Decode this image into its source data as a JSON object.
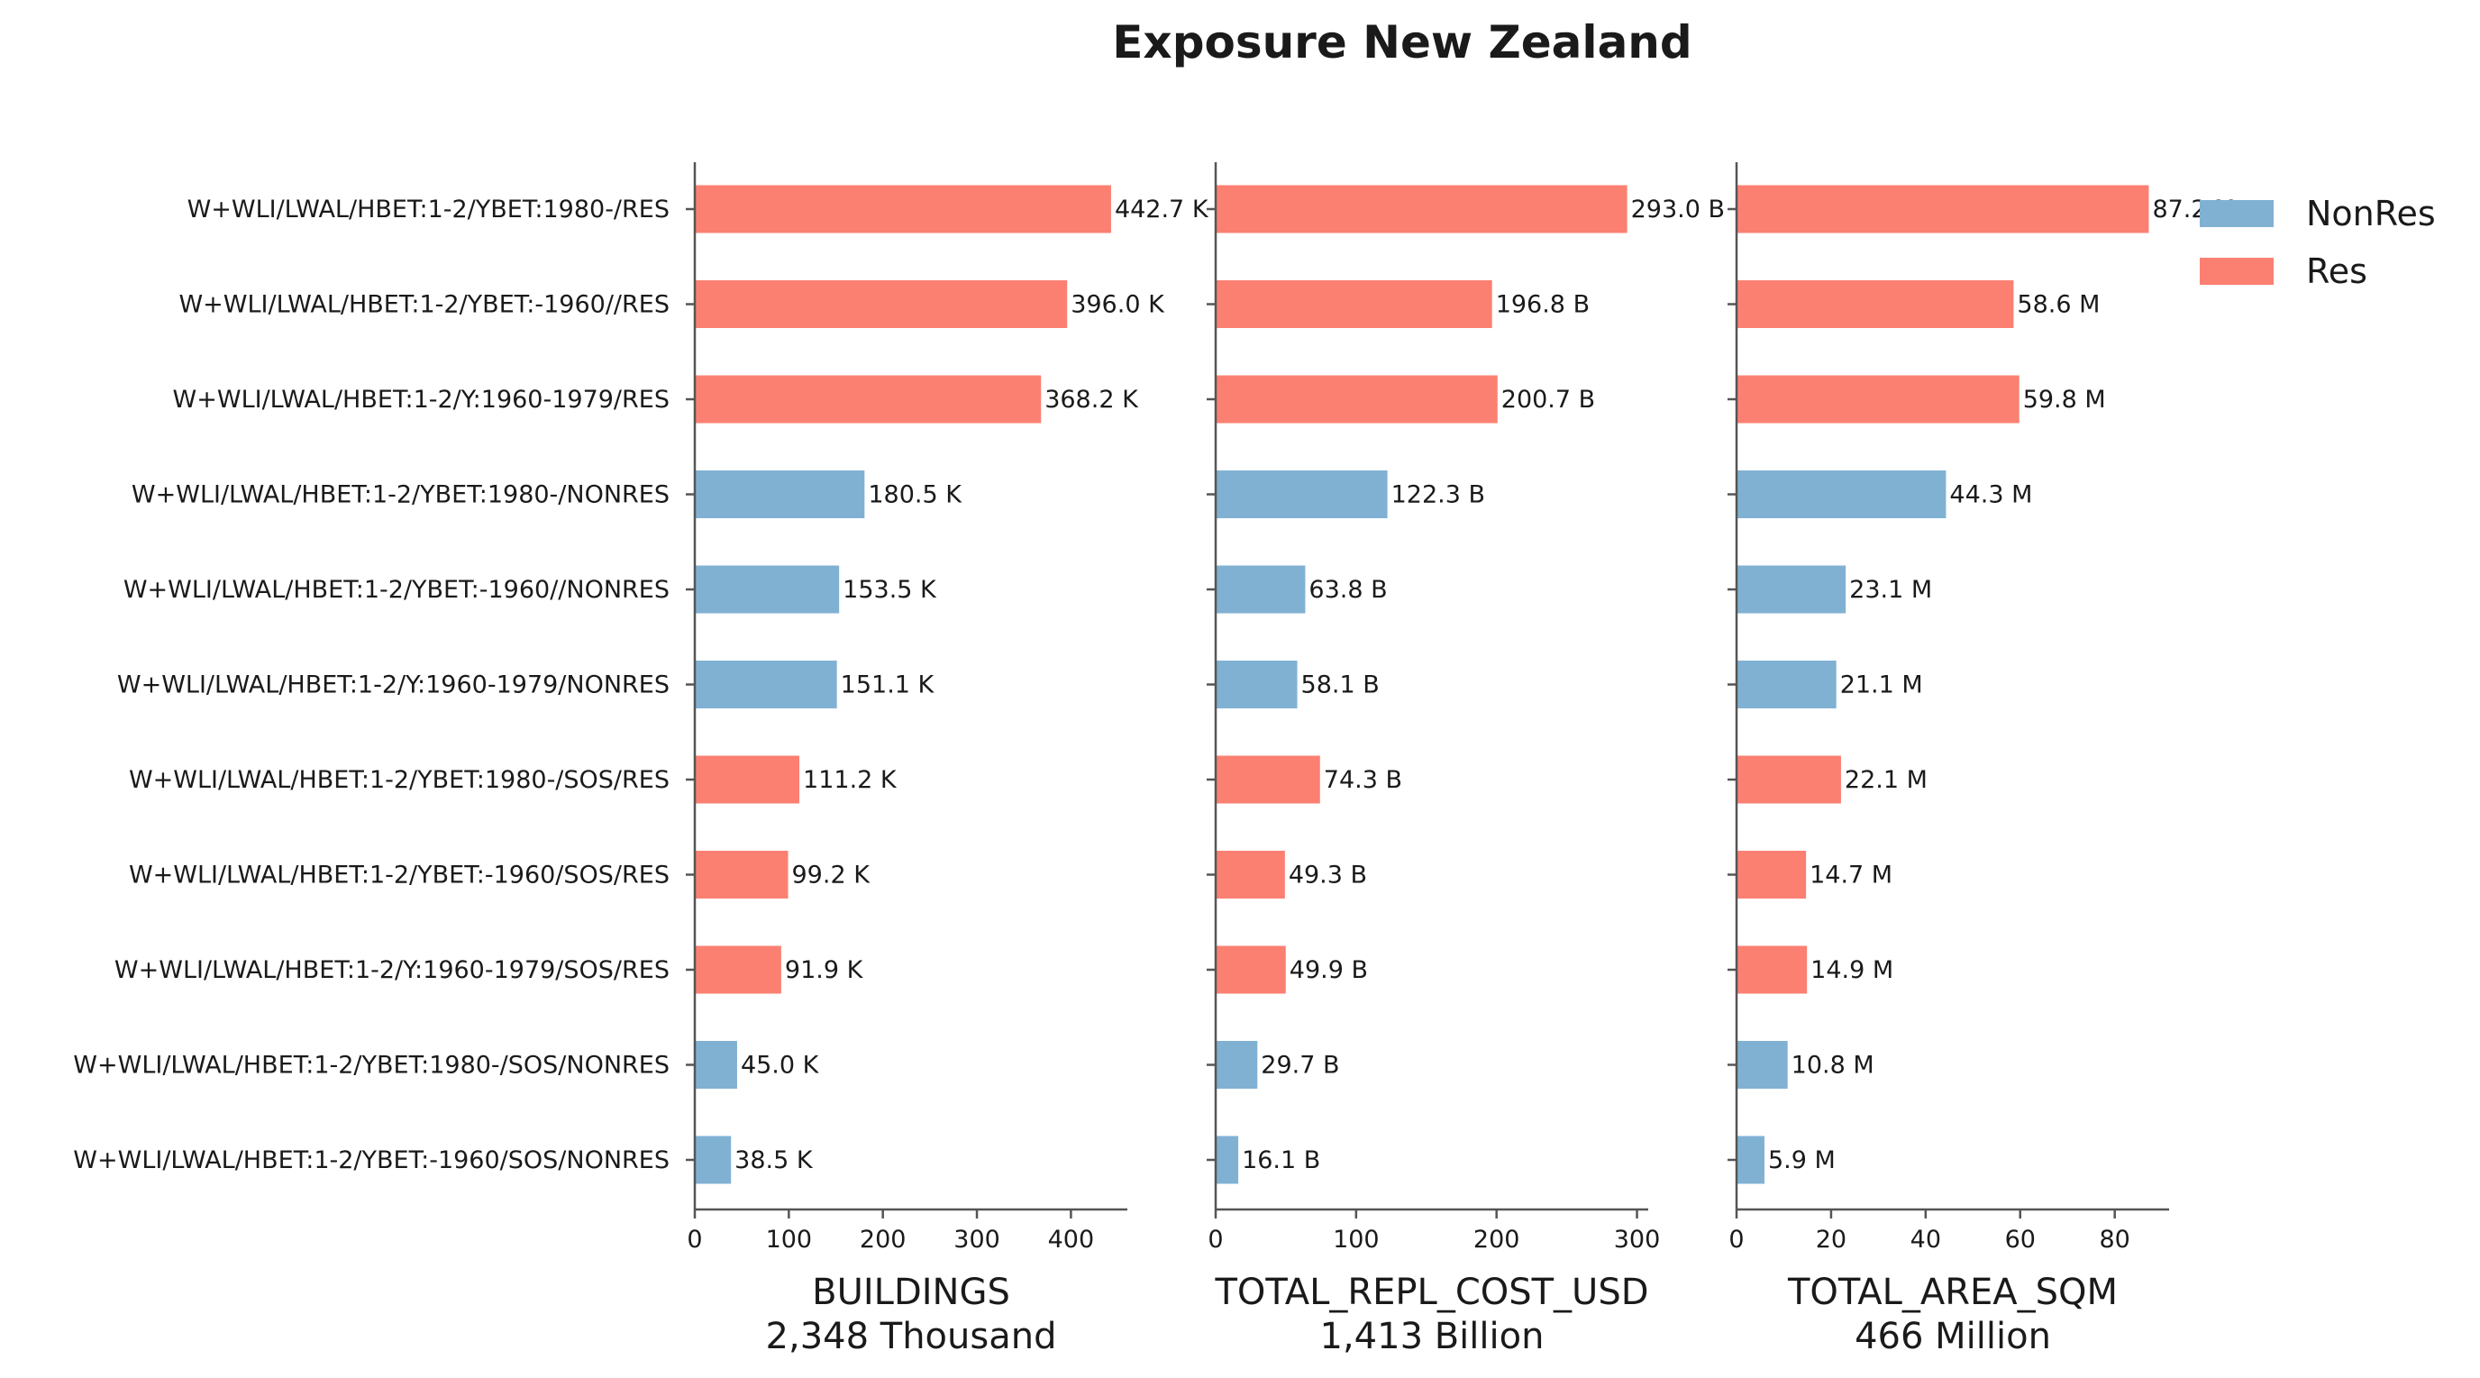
{
  "title": "Exposure New Zealand",
  "colors": {
    "NonRes": "#80b1d3",
    "Res": "#fb8072"
  },
  "legend": {
    "placement": "upper-right",
    "items": [
      {
        "label": "NonRes",
        "color": "#80b1d3"
      },
      {
        "label": "Res",
        "color": "#fb8072"
      }
    ]
  },
  "chart_data": {
    "type": "bar",
    "orientation": "horizontal",
    "grid": false,
    "categories": [
      "W+WLI/LWAL/HBET:1-2/YBET:1980-/RES",
      "W+WLI/LWAL/HBET:1-2/YBET:-1960//RES",
      "W+WLI/LWAL/HBET:1-2/Y:1960-1979/RES",
      "W+WLI/LWAL/HBET:1-2/YBET:1980-/NONRES",
      "W+WLI/LWAL/HBET:1-2/YBET:-1960//NONRES",
      "W+WLI/LWAL/HBET:1-2/Y:1960-1979/NONRES",
      "W+WLI/LWAL/HBET:1-2/YBET:1980-/SOS/RES",
      "W+WLI/LWAL/HBET:1-2/YBET:-1960/SOS/RES",
      "W+WLI/LWAL/HBET:1-2/Y:1960-1979/SOS/RES",
      "W+WLI/LWAL/HBET:1-2/YBET:1980-/SOS/NONRES",
      "W+WLI/LWAL/HBET:1-2/YBET:-1960/SOS/NONRES"
    ],
    "groups": [
      "Res",
      "Res",
      "Res",
      "NonRes",
      "NonRes",
      "NonRes",
      "Res",
      "Res",
      "Res",
      "NonRes",
      "NonRes"
    ],
    "panels": [
      {
        "xlabel": "BUILDINGS",
        "total": "2,348 Thousand",
        "xlim": [
          0,
          460
        ],
        "ticks": [
          0,
          100,
          200,
          300,
          400
        ],
        "tick_labels": [
          "0",
          "100",
          "200",
          "300",
          "400"
        ],
        "values": [
          442.7,
          396.0,
          368.2,
          180.5,
          153.5,
          151.1,
          111.2,
          99.2,
          91.9,
          45.0,
          38.5
        ],
        "labels": [
          "442.7 K",
          "396.0 K",
          "368.2 K",
          "180.5 K",
          "153.5 K",
          "151.1 K",
          "111.2 K",
          "99.2 K",
          "91.9 K",
          "45.0 K",
          "38.5 K"
        ]
      },
      {
        "xlabel": "TOTAL_REPL_COST_USD",
        "total": "1,413 Billion",
        "xlim": [
          0,
          308
        ],
        "ticks": [
          0,
          100,
          200,
          300
        ],
        "tick_labels": [
          "0",
          "100",
          "200",
          "300"
        ],
        "values": [
          293.0,
          196.8,
          200.7,
          122.3,
          63.8,
          58.1,
          74.3,
          49.3,
          49.9,
          29.7,
          16.1
        ],
        "labels": [
          "293.0 B",
          "196.8 B",
          "200.7 B",
          "122.3 B",
          "63.8 B",
          "58.1 B",
          "74.3 B",
          "49.3 B",
          "49.9 B",
          "29.7 B",
          "16.1 B"
        ]
      },
      {
        "xlabel": "TOTAL_AREA_SQM",
        "total": "466 Million",
        "xlim": [
          0,
          91.5
        ],
        "ticks": [
          0,
          20,
          40,
          60,
          80
        ],
        "tick_labels": [
          "0",
          "20",
          "40",
          "60",
          "80"
        ],
        "values": [
          87.2,
          58.6,
          59.8,
          44.3,
          23.1,
          21.1,
          22.1,
          14.7,
          14.9,
          10.8,
          5.9
        ],
        "labels": [
          "87.2 M",
          "58.6 M",
          "59.8 M",
          "44.3 M",
          "23.1 M",
          "21.1 M",
          "22.1 M",
          "14.7 M",
          "14.9 M",
          "10.8 M",
          "5.9 M"
        ]
      }
    ]
  }
}
